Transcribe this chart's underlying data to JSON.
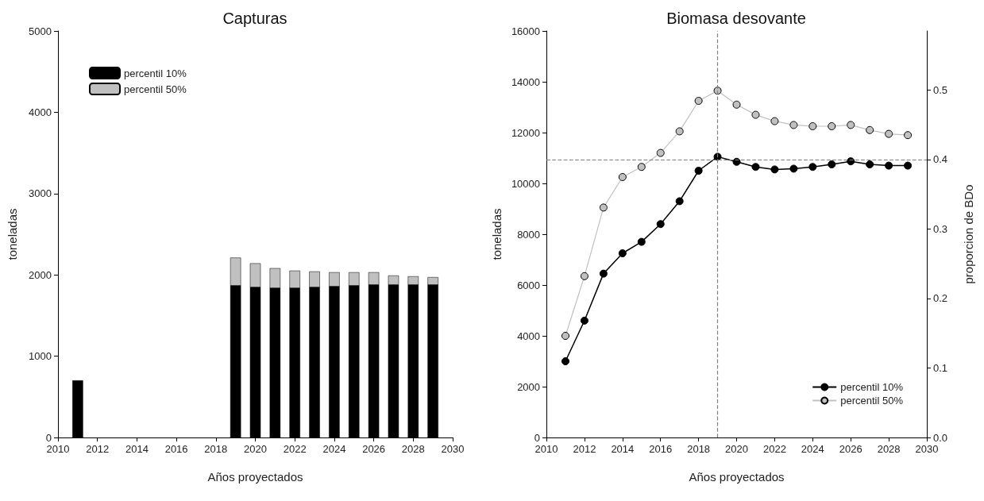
{
  "chart_data": [
    {
      "type": "bar",
      "title": "Capturas",
      "xlabel": "Años proyectados",
      "ylabel": "toneladas",
      "stacked": true,
      "grid": false,
      "legend": "top left",
      "x": [
        2011,
        2019,
        2020,
        2021,
        2022,
        2023,
        2024,
        2025,
        2026,
        2027,
        2028,
        2029
      ],
      "series": [
        {
          "name": "percentil 10%",
          "color": "#000000",
          "values": [
            700,
            1870,
            1850,
            1840,
            1840,
            1850,
            1860,
            1870,
            1880,
            1880,
            1880,
            1880
          ]
        },
        {
          "name": "percentil 50%",
          "color": "#c0c0c0",
          "values": [
            null,
            340,
            290,
            240,
            210,
            190,
            170,
            160,
            150,
            110,
            100,
            90
          ]
        }
      ],
      "xlim": [
        2010,
        2030
      ],
      "xticks": [
        2010,
        2012,
        2014,
        2016,
        2018,
        2020,
        2022,
        2024,
        2026,
        2028,
        2030
      ],
      "ylim": [
        0,
        5000
      ],
      "yticks": [
        0,
        1000,
        2000,
        3000,
        4000,
        5000
      ]
    },
    {
      "type": "line",
      "title": "Biomasa desovante",
      "xlabel": "Años proyectados",
      "ylabel": "toneladas",
      "y2label": "proporcion de BDo",
      "grid": false,
      "legend": "bottom right",
      "marker": "circle",
      "x": [
        2011,
        2012,
        2013,
        2014,
        2015,
        2016,
        2017,
        2018,
        2019,
        2020,
        2021,
        2022,
        2023,
        2024,
        2025,
        2026,
        2027,
        2028,
        2029
      ],
      "series": [
        {
          "name": "percentil 10%",
          "color": "#000000",
          "values": [
            3000,
            4600,
            6450,
            7250,
            7700,
            8400,
            9300,
            10500,
            11050,
            10850,
            10650,
            10550,
            10580,
            10650,
            10750,
            10870,
            10750,
            10700,
            10700
          ]
        },
        {
          "name": "percentil 50%",
          "color": "#c0c0c0",
          "values": [
            4000,
            6350,
            9050,
            10250,
            10650,
            11200,
            12050,
            13250,
            13650,
            13100,
            12700,
            12450,
            12300,
            12250,
            12250,
            12300,
            12100,
            11950,
            11900
          ]
        }
      ],
      "xlim": [
        2010,
        2030
      ],
      "xticks": [
        2010,
        2012,
        2014,
        2016,
        2018,
        2020,
        2022,
        2024,
        2026,
        2028,
        2030
      ],
      "ylim": [
        0,
        16000
      ],
      "yticks": [
        0,
        2000,
        4000,
        6000,
        8000,
        10000,
        12000,
        14000,
        16000
      ],
      "y2lim": [
        0,
        0.585
      ],
      "y2ticks": [
        {
          "value": 0,
          "label": "0.0"
        },
        {
          "value": 0.1,
          "label": "0.1"
        },
        {
          "value": 0.2,
          "label": "0.2"
        },
        {
          "value": 0.3,
          "label": "0.3"
        },
        {
          "value": 0.4,
          "label": "0.4"
        },
        {
          "value": 0.5,
          "label": "0.5"
        }
      ],
      "ref_lines": [
        {
          "axis": "x",
          "value": 2019,
          "color": "#808080",
          "line_style": "dashed"
        },
        {
          "axis": "y2",
          "value": 0.4,
          "color": "#808080",
          "line_style": "dashed"
        }
      ]
    }
  ]
}
